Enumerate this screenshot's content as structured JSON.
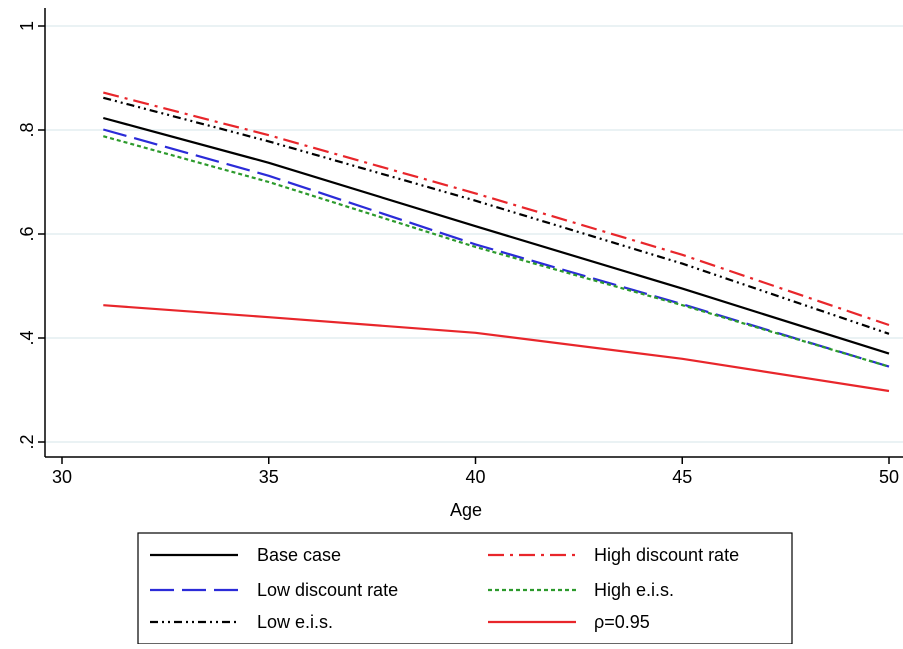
{
  "chart_data": {
    "type": "line",
    "title": "",
    "xlabel": "Age",
    "ylabel": "",
    "xlim": [
      30,
      50
    ],
    "ylim": [
      0.2,
      1.0
    ],
    "x_ticks": [
      30,
      35,
      40,
      45,
      50
    ],
    "x_tick_labels": [
      "30",
      "35",
      "40",
      "45",
      "50"
    ],
    "y_ticks": [
      0.2,
      0.4,
      0.6,
      0.8,
      1.0
    ],
    "y_tick_labels": [
      ".2",
      ".4",
      ".6",
      ".8",
      "1"
    ],
    "grid": "horizontal",
    "legend_position": "bottom",
    "series": [
      {
        "name": "Base case",
        "color": "#000000",
        "dash": "solid",
        "x": [
          31,
          35,
          40,
          45,
          50
        ],
        "y": [
          0.823,
          0.737,
          0.615,
          0.495,
          0.37
        ]
      },
      {
        "name": "High discount rate",
        "color": "#e8262b",
        "dash": "dashdot",
        "x": [
          31,
          35,
          40,
          45,
          50
        ],
        "y": [
          0.872,
          0.79,
          0.678,
          0.56,
          0.425
        ]
      },
      {
        "name": "Low discount rate",
        "color": "#2b2bd8",
        "dash": "longdash",
        "x": [
          31,
          35,
          40,
          45,
          50
        ],
        "y": [
          0.801,
          0.712,
          0.58,
          0.465,
          0.345
        ]
      },
      {
        "name": "High e.i.s.",
        "color": "#2c9a2c",
        "dash": "dotted",
        "x": [
          31,
          35,
          40,
          45,
          50
        ],
        "y": [
          0.788,
          0.7,
          0.575,
          0.463,
          0.345
        ]
      },
      {
        "name": "Low e.i.s.",
        "color": "#000000",
        "dash": "dashdotdot",
        "x": [
          31,
          35,
          40,
          45,
          50
        ],
        "y": [
          0.862,
          0.778,
          0.664,
          0.543,
          0.408
        ]
      },
      {
        "name": "ρ=0.95",
        "color": "#e8262b",
        "dash": "solid",
        "x": [
          31,
          35,
          40,
          45,
          50
        ],
        "y": [
          0.463,
          0.44,
          0.41,
          0.36,
          0.298
        ]
      }
    ]
  }
}
